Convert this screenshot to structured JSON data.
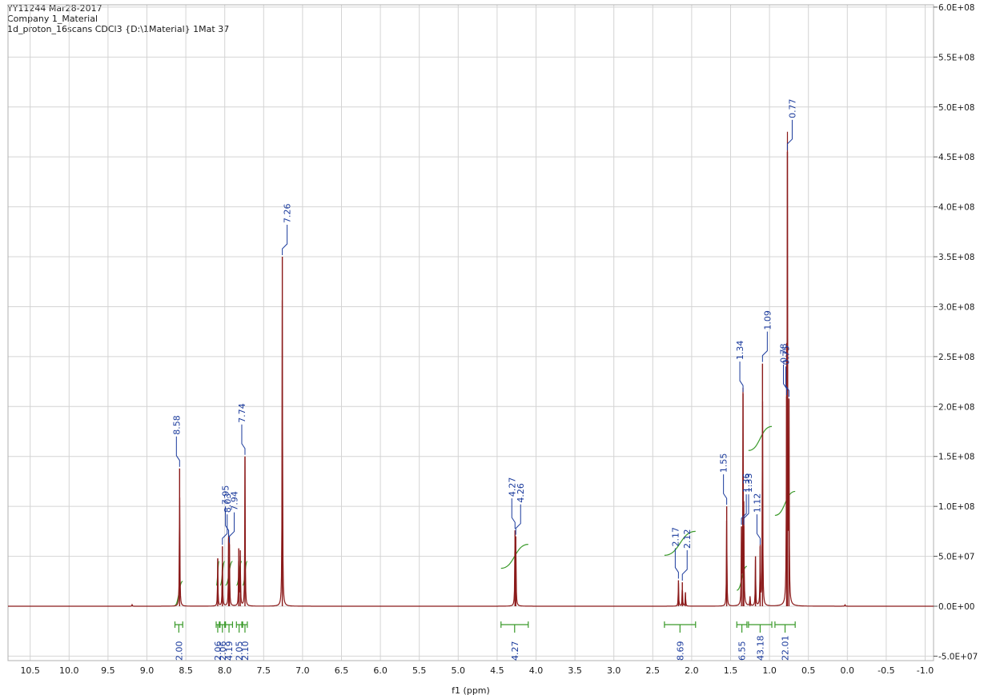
{
  "header": {
    "line1": "YY11244 Mar28-2017",
    "line2": "Company 1_Material",
    "line3": "1d_proton_16scans CDCl3 {D:\\1Material} 1Mat 37"
  },
  "colors": {
    "spectrum": "#8b1a1a",
    "peak_label": "#1a3a9c",
    "integral": "#3a9a2a",
    "integral_label": "#1a3a9c",
    "grid": "#d4d4d4"
  },
  "chart_data": {
    "type": "line",
    "title": "",
    "xlabel": "f1 (ppm)",
    "ylabel": "",
    "x_reversed": true,
    "xlim": [
      11.0,
      -1.6
    ],
    "ylim": [
      -50000000,
      600000000
    ],
    "grid": true,
    "x_ticks": [
      "10.5",
      "10.0",
      "9.5",
      "9.0",
      "8.5",
      "8.0",
      "7.5",
      "7.0",
      "6.5",
      "6.0",
      "5.5",
      "5.0",
      "4.5",
      "4.0",
      "3.5",
      "3.0",
      "2.5",
      "2.0",
      "1.5",
      "1.0",
      "0.5",
      "0.0",
      "-0.5",
      "-1.0"
    ],
    "y_ticks": [
      "-5.0E+07",
      "0.0E+00",
      "5.0E+07",
      "1.0E+08",
      "1.5E+08",
      "2.0E+08",
      "2.5E+08",
      "3.0E+08",
      "3.5E+08",
      "4.0E+08",
      "4.5E+08",
      "5.0E+08",
      "5.5E+08",
      "6.0E+08"
    ],
    "peaks": [
      {
        "ppm": 9.19,
        "height": 1500000
      },
      {
        "ppm": 8.58,
        "height": 138000000
      },
      {
        "ppm": 8.09,
        "height": 48000000
      },
      {
        "ppm": 8.03,
        "height": 60000000
      },
      {
        "ppm": 7.95,
        "height": 68000000
      },
      {
        "ppm": 7.94,
        "height": 62000000
      },
      {
        "ppm": 7.82,
        "height": 58000000
      },
      {
        "ppm": 7.8,
        "height": 56000000
      },
      {
        "ppm": 7.74,
        "height": 150000000
      },
      {
        "ppm": 7.26,
        "height": 350000000
      },
      {
        "ppm": 4.27,
        "height": 76000000
      },
      {
        "ppm": 4.26,
        "height": 70000000
      },
      {
        "ppm": 2.17,
        "height": 26000000
      },
      {
        "ppm": 2.12,
        "height": 24000000
      },
      {
        "ppm": 2.08,
        "height": 14000000
      },
      {
        "ppm": 1.55,
        "height": 100000000
      },
      {
        "ppm": 1.36,
        "height": 80000000
      },
      {
        "ppm": 1.34,
        "height": 213000000
      },
      {
        "ppm": 1.33,
        "height": 80000000
      },
      {
        "ppm": 1.25,
        "height": 10000000
      },
      {
        "ppm": 1.18,
        "height": 50000000
      },
      {
        "ppm": 1.12,
        "height": 60000000
      },
      {
        "ppm": 1.09,
        "height": 243000000
      },
      {
        "ppm": 0.78,
        "height": 210000000
      },
      {
        "ppm": 0.77,
        "height": 455000000
      },
      {
        "ppm": 0.75,
        "height": 208000000
      },
      {
        "ppm": 0.03,
        "height": 1500000
      }
    ],
    "peak_labels": [
      {
        "text": "8.58",
        "ppm": 8.58,
        "tip": 138000000
      },
      {
        "text": "8.03",
        "ppm": 8.03,
        "tip": 60000000
      },
      {
        "text": "7.95",
        "ppm": 7.95,
        "tip": 68000000
      },
      {
        "text": "7.94",
        "ppm": 7.94,
        "tip": 62000000
      },
      {
        "text": "7.74",
        "ppm": 7.74,
        "tip": 150000000
      },
      {
        "text": "7.26",
        "ppm": 7.26,
        "tip": 350000000
      },
      {
        "text": "4.27",
        "ppm": 4.27,
        "tip": 76000000
      },
      {
        "text": "4.26",
        "ppm": 4.26,
        "tip": 70000000
      },
      {
        "text": "2.17",
        "ppm": 2.17,
        "tip": 26000000
      },
      {
        "text": "2.12",
        "ppm": 2.12,
        "tip": 24000000
      },
      {
        "text": "1.55",
        "ppm": 1.55,
        "tip": 100000000
      },
      {
        "text": "1.36",
        "ppm": 1.36,
        "tip": 80000000
      },
      {
        "text": "1.34",
        "ppm": 1.34,
        "tip": 213000000
      },
      {
        "text": "1.33",
        "ppm": 1.33,
        "tip": 80000000
      },
      {
        "text": "1.12",
        "ppm": 1.12,
        "tip": 60000000
      },
      {
        "text": "1.09",
        "ppm": 1.09,
        "tip": 243000000
      },
      {
        "text": "0.78",
        "ppm": 0.78,
        "tip": 210000000
      },
      {
        "text": "0.77",
        "ppm": 0.77,
        "tip": 455000000
      },
      {
        "text": "0.75",
        "ppm": 0.75,
        "tip": 208000000
      }
    ],
    "integrals": [
      {
        "value": "2.00",
        "from": 8.64,
        "to": 8.54,
        "curve_height": 25000000
      },
      {
        "value": "2.06",
        "from": 8.11,
        "to": 8.07,
        "curve_height": 45000000
      },
      {
        "value": "2.06",
        "from": 8.06,
        "to": 8.0,
        "curve_height": 45000000
      },
      {
        "value": "4.19",
        "from": 7.99,
        "to": 7.9,
        "curve_height": 45000000
      },
      {
        "value": "2.05",
        "from": 7.85,
        "to": 7.78,
        "curve_height": 45000000
      },
      {
        "value": "2.10",
        "from": 7.77,
        "to": 7.71,
        "curve_height": 45000000
      },
      {
        "value": "4.27",
        "from": 4.45,
        "to": 4.1,
        "curve_height": 62000000
      },
      {
        "value": "8.69",
        "from": 2.35,
        "to": 1.95,
        "curve_height": 75000000
      },
      {
        "value": "6.55",
        "from": 1.42,
        "to": 1.29,
        "curve_height": 40000000
      },
      {
        "value": "43.18",
        "from": 1.27,
        "to": 0.97,
        "curve_height": 180000000
      },
      {
        "value": "22.01",
        "from": 0.93,
        "to": 0.67,
        "curve_height": 115000000
      }
    ]
  }
}
